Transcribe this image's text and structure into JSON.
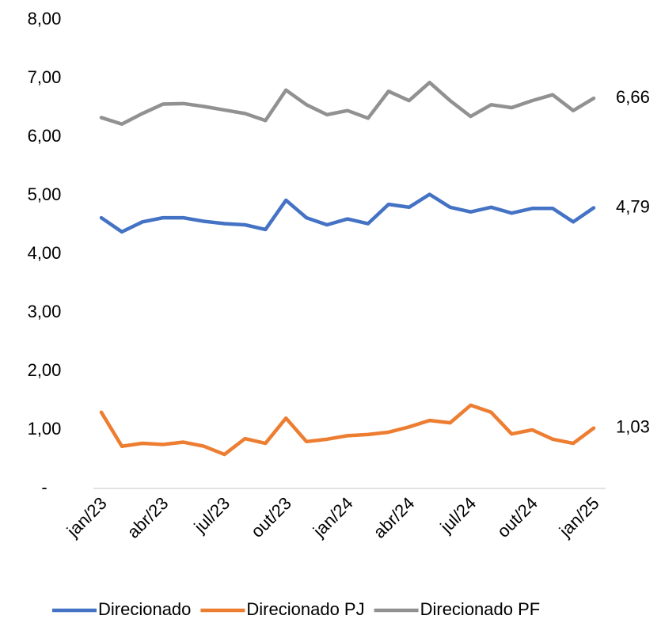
{
  "chart_data": {
    "type": "line",
    "categories": [
      "jan/23",
      null,
      null,
      "abr/23",
      null,
      null,
      "jul/23",
      null,
      null,
      "out/23",
      null,
      null,
      "jan/24",
      null,
      null,
      "abr/24",
      null,
      null,
      "jul/24",
      null,
      null,
      "out/24",
      null,
      null,
      "jan/25"
    ],
    "series": [
      {
        "name": "Direcionado",
        "color": "#4472c4",
        "values": [
          4.62,
          4.38,
          4.55,
          4.62,
          4.62,
          4.56,
          4.52,
          4.5,
          4.42,
          4.92,
          4.62,
          4.5,
          4.6,
          4.52,
          4.85,
          4.8,
          5.02,
          4.8,
          4.72,
          4.8,
          4.7,
          4.78,
          4.78,
          4.55,
          4.79
        ],
        "value_labels": [
          null,
          null,
          null,
          null,
          null,
          null,
          null,
          null,
          null,
          null,
          null,
          null,
          null,
          null,
          null,
          null,
          null,
          null,
          null,
          null,
          null,
          null,
          null,
          null,
          "4,79"
        ]
      },
      {
        "name": "Direcionado PJ",
        "color": "#ed7d31",
        "values": [
          1.3,
          0.72,
          0.77,
          0.75,
          0.79,
          0.72,
          0.58,
          0.85,
          0.77,
          1.2,
          0.8,
          0.84,
          0.9,
          0.92,
          0.96,
          1.05,
          1.16,
          1.12,
          1.42,
          1.3,
          0.93,
          1.0,
          0.84,
          0.77,
          1.03
        ],
        "value_labels": [
          null,
          null,
          null,
          null,
          null,
          null,
          null,
          null,
          null,
          null,
          null,
          null,
          null,
          null,
          null,
          null,
          null,
          null,
          null,
          null,
          null,
          null,
          null,
          null,
          "1,03"
        ]
      },
      {
        "name": "Direcionado PF",
        "color": "#919191",
        "values": [
          6.33,
          6.22,
          6.4,
          6.56,
          6.57,
          6.52,
          6.46,
          6.4,
          6.28,
          6.8,
          6.55,
          6.38,
          6.45,
          6.32,
          6.78,
          6.62,
          6.93,
          6.62,
          6.35,
          6.55,
          6.5,
          6.62,
          6.72,
          6.45,
          6.66
        ],
        "value_labels": [
          null,
          null,
          null,
          null,
          null,
          null,
          null,
          null,
          null,
          null,
          null,
          null,
          null,
          null,
          null,
          null,
          null,
          null,
          null,
          null,
          null,
          null,
          null,
          null,
          "6,66"
        ]
      }
    ],
    "ylim": [
      0,
      8
    ],
    "yticks": [
      {
        "value": 0,
        "label": "-"
      },
      {
        "value": 1,
        "label": "1,00"
      },
      {
        "value": 2,
        "label": "2,00"
      },
      {
        "value": 3,
        "label": "3,00"
      },
      {
        "value": 4,
        "label": "4,00"
      },
      {
        "value": 5,
        "label": "5,00"
      },
      {
        "value": 6,
        "label": "6,00"
      },
      {
        "value": 7,
        "label": "7,00"
      },
      {
        "value": 8,
        "label": "8,00"
      }
    ],
    "legend": "bottom"
  }
}
